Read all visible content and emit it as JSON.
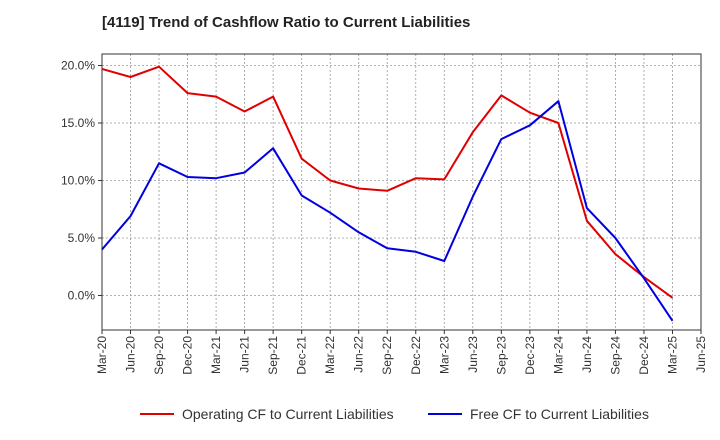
{
  "title": "[4119]  Trend of Cashflow Ratio to Current Liabilities",
  "colors": {
    "operating": "#e00000",
    "free": "#0000e0",
    "grid": "#999999",
    "axis": "#333333"
  },
  "chart_data": {
    "type": "line",
    "title": "[4119]  Trend of Cashflow Ratio to Current Liabilities",
    "xlabel": "",
    "ylabel": "",
    "x_tick_labels": [
      "Mar-20",
      "Jun-20",
      "Sep-20",
      "Dec-20",
      "Mar-21",
      "Jun-21",
      "Sep-21",
      "Dec-21",
      "Mar-22",
      "Jun-22",
      "Sep-22",
      "Dec-22",
      "Mar-23",
      "Jun-23",
      "Sep-23",
      "Dec-23",
      "Mar-24",
      "Jun-24",
      "Sep-24",
      "Dec-24",
      "Mar-25",
      "Jun-25"
    ],
    "y_tick_labels": [
      "0.0%",
      "5.0%",
      "10.0%",
      "15.0%",
      "20.0%"
    ],
    "y_ticks": [
      0,
      5,
      10,
      15,
      20
    ],
    "ylim": [
      -3,
      21
    ],
    "grid": true,
    "legend_position": "bottom",
    "x": [
      "Mar-20",
      "Jun-20",
      "Sep-20",
      "Dec-20",
      "Mar-21",
      "Jun-21",
      "Sep-21",
      "Dec-21",
      "Mar-22",
      "Jun-22",
      "Sep-22",
      "Dec-22",
      "Mar-23",
      "Jun-23",
      "Sep-23",
      "Dec-23",
      "Mar-24",
      "Jun-24",
      "Sep-24",
      "Dec-24",
      "Mar-25"
    ],
    "series": [
      {
        "name": "Operating CF to Current Liabilities",
        "color": "#e00000",
        "values": [
          19.7,
          19.0,
          19.9,
          17.6,
          17.3,
          16.0,
          17.3,
          11.9,
          10.0,
          9.3,
          9.1,
          10.2,
          10.1,
          14.2,
          17.4,
          15.9,
          15.0,
          6.5,
          3.6,
          1.6,
          -0.2
        ]
      },
      {
        "name": "Free CF to Current Liabilities",
        "color": "#0000e0",
        "values": [
          4.0,
          6.9,
          11.5,
          10.3,
          10.2,
          10.7,
          12.8,
          8.7,
          7.2,
          5.5,
          4.1,
          3.8,
          3.0,
          8.6,
          13.6,
          14.8,
          16.9,
          7.6,
          5.0,
          1.5,
          -2.2
        ]
      }
    ]
  }
}
